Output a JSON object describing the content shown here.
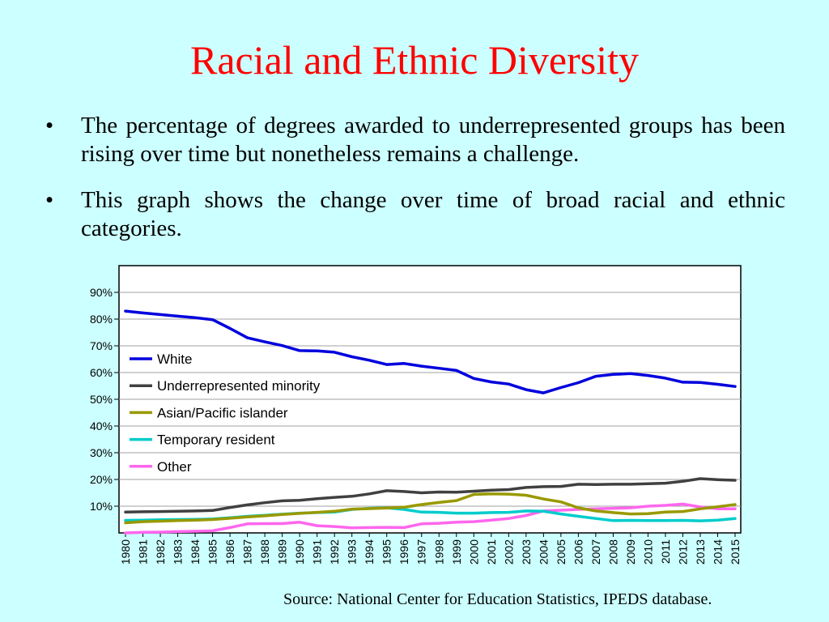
{
  "slide": {
    "title": "Racial and Ethnic Diversity",
    "bullets": [
      "The percentage of degrees awarded to underrepresented groups has been rising over time but nonetheless remains a challenge.",
      "This graph shows the change over time of broad racial and ethnic categories."
    ],
    "bullet_glyph": "•",
    "source": "Source:  National Center for Education Statistics, IPEDS database."
  },
  "chart_data": {
    "type": "line",
    "title": "",
    "xlabel": "",
    "ylabel": "",
    "ylim": [
      0,
      100
    ],
    "yticks": [
      10,
      20,
      30,
      40,
      50,
      60,
      70,
      80,
      90
    ],
    "ytick_labels": [
      "10%",
      "20%",
      "30%",
      "40%",
      "50%",
      "60%",
      "70%",
      "80%",
      "90%"
    ],
    "grid": true,
    "legend": "top-left",
    "x": [
      "1980",
      "1981",
      "1982",
      "1983",
      "1984",
      "1985",
      "1986",
      "1987",
      "1988",
      "1989",
      "1990",
      "1991",
      "1992",
      "1993",
      "1994",
      "1995",
      "1996",
      "1997",
      "1998",
      "1999",
      "2000",
      "2001",
      "2002",
      "2003",
      "2004",
      "2005",
      "2006",
      "2007",
      "2008",
      "2009",
      "2010",
      "2011",
      "2012",
      "2013",
      "2014",
      "2015"
    ],
    "series": [
      {
        "name": "White",
        "color": "#0000dd",
        "values": [
          83.0,
          82.3,
          81.7,
          81.1,
          80.5,
          79.8,
          76.5,
          73.0,
          71.5,
          70.1,
          68.2,
          68.1,
          67.6,
          65.9,
          64.6,
          63.0,
          63.4,
          62.4,
          61.6,
          60.8,
          57.8,
          56.5,
          55.7,
          53.6,
          52.4,
          54.4,
          56.2,
          58.6,
          59.3,
          59.6,
          58.9,
          57.9,
          56.4,
          56.3,
          55.6,
          54.8
        ]
      },
      {
        "name": "Underrepresented minority",
        "color": "#404040",
        "values": [
          7.8,
          7.9,
          8.0,
          8.1,
          8.2,
          8.4,
          9.5,
          10.5,
          11.3,
          12.0,
          12.2,
          12.8,
          13.3,
          13.7,
          14.6,
          15.8,
          15.5,
          15.0,
          15.3,
          15.2,
          15.6,
          16.0,
          16.2,
          17.0,
          17.3,
          17.4,
          18.2,
          18.1,
          18.2,
          18.2,
          18.4,
          18.6,
          19.3,
          20.3,
          19.9,
          19.7
        ]
      },
      {
        "name": "Asian/Pacific islander",
        "color": "#999900",
        "values": [
          3.8,
          4.2,
          4.4,
          4.6,
          4.8,
          5.0,
          5.5,
          6.0,
          6.4,
          6.9,
          7.3,
          7.7,
          8.1,
          8.9,
          9.1,
          9.3,
          9.6,
          10.6,
          11.4,
          12.1,
          14.4,
          14.6,
          14.5,
          14.1,
          12.7,
          11.6,
          9.4,
          8.2,
          7.6,
          7.1,
          7.2,
          7.8,
          8.0,
          9.0,
          9.8,
          10.6
        ]
      },
      {
        "name": "Temporary resident",
        "color": "#00cccc",
        "values": [
          4.7,
          4.8,
          4.9,
          5.0,
          5.1,
          5.2,
          5.7,
          6.2,
          6.6,
          7.0,
          7.4,
          7.6,
          7.8,
          8.8,
          9.2,
          9.4,
          8.8,
          7.8,
          7.7,
          7.4,
          7.4,
          7.6,
          7.7,
          8.2,
          8.1,
          7.1,
          6.2,
          5.4,
          4.6,
          4.7,
          4.6,
          4.6,
          4.7,
          4.5,
          4.8,
          5.4
        ]
      },
      {
        "name": "Other",
        "color": "#ff66ee",
        "values": [
          0.0,
          0.2,
          0.3,
          0.5,
          0.6,
          0.8,
          2.0,
          3.4,
          3.5,
          3.5,
          4.0,
          2.7,
          2.4,
          1.9,
          2.0,
          2.1,
          2.0,
          3.4,
          3.6,
          4.0,
          4.2,
          4.8,
          5.4,
          6.5,
          8.2,
          8.5,
          8.8,
          9.0,
          9.2,
          9.4,
          10.0,
          10.3,
          10.8,
          9.7,
          9.0,
          9.0
        ]
      }
    ]
  }
}
